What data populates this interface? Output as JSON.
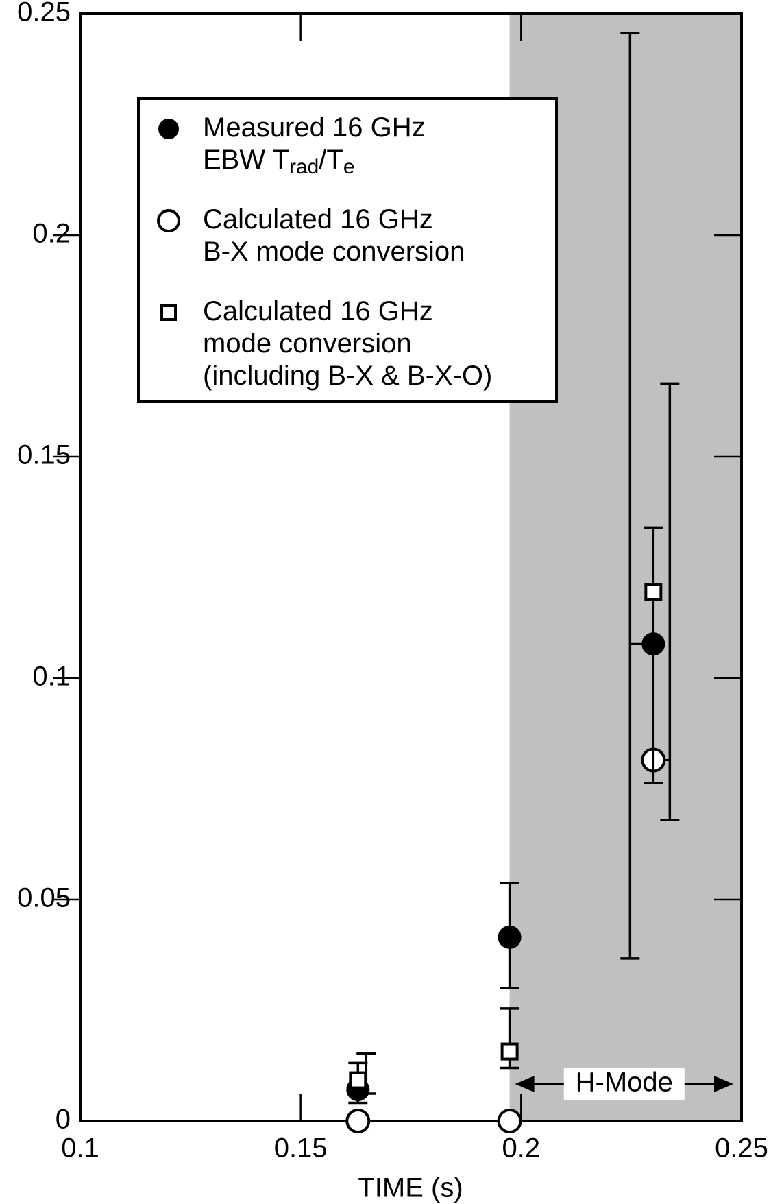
{
  "chart_data": {
    "type": "scatter",
    "x_label": "TIME (s)",
    "xlim": [
      0.1,
      0.25
    ],
    "xticks": [
      {
        "value": 0.1,
        "label": "0.1"
      },
      0.15,
      {
        "value": 0.2,
        "label": "0.2"
      },
      0.25
    ],
    "ylim": [
      0,
      0.25
    ],
    "yticks": [
      0,
      0.05,
      {
        "value": 0.1,
        "label": "0.1"
      },
      0.15,
      {
        "value": 0.2,
        "label": "0.2"
      },
      0.25
    ],
    "shaded_region": {
      "xlim": [
        0.1974,
        0.25
      ],
      "label": "H-Mode",
      "color": "#c0c0c0"
    },
    "series": [
      {
        "name_lines": [
          [
            "Measured 16 GHz"
          ],
          [
            "EBW T",
            "rad",
            "/T",
            "e"
          ]
        ],
        "marker": "filled-circle",
        "color": "#000000",
        "x": [
          0.163,
          0.1974,
          0.23
        ],
        "values": [
          0.0071,
          0.0415,
          0.1077
        ],
        "err_plus": [
          0.006,
          0.0122,
          0.138
        ],
        "err_minus": [
          0.003,
          0.0115,
          0.071
        ]
      },
      {
        "name_lines": [
          [
            "Calculated 16 GHz"
          ],
          [
            "B-X mode conversion"
          ]
        ],
        "marker": "open-circle",
        "color": "#000000",
        "x": [
          0.163,
          0.1974,
          0.23
        ],
        "values": [
          0,
          0,
          0.0815
        ],
        "err_plus": [
          null,
          null,
          0.085
        ],
        "err_minus": [
          null,
          null,
          0.0135
        ]
      },
      {
        "name_lines": [
          [
            "Calculated 16 GHz"
          ],
          [
            "mode conversion"
          ],
          [
            "(including B-X & B-X-O)"
          ]
        ],
        "marker": "open-square",
        "color": "#000000",
        "x": [
          0.163,
          0.1974,
          0.23
        ],
        "values": [
          0.0092,
          0.0157,
          0.1195
        ],
        "err_plus": [
          0.006,
          0.0097,
          0.0145
        ],
        "err_minus": [
          0.003,
          0.0037,
          0.0432
        ]
      }
    ]
  }
}
